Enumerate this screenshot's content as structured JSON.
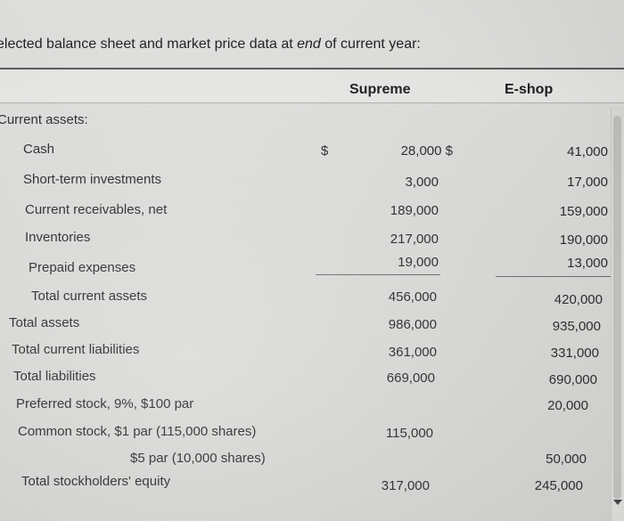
{
  "title": {
    "prefix": "elected balance sheet and market price data at ",
    "emphasis": "end",
    "suffix": " of current year:"
  },
  "columns": {
    "supreme": "Supreme",
    "eshop": "E-shop"
  },
  "currency_symbol": "$",
  "sections": {
    "current_assets": "Current assets:"
  },
  "rows": [
    {
      "label": "Cash",
      "supreme": "28,000",
      "eshop": "41,000"
    },
    {
      "label": "Short-term investments",
      "supreme": "3,000",
      "eshop": "17,000"
    },
    {
      "label": "Current receivables, net",
      "supreme": "189,000",
      "eshop": "159,000"
    },
    {
      "label": "Inventories",
      "supreme": "217,000",
      "eshop": "190,000"
    },
    {
      "label": "Prepaid expenses",
      "supreme": "19,000",
      "eshop": "13,000"
    },
    {
      "label": "Total current assets",
      "supreme": "456,000",
      "eshop": "420,000"
    },
    {
      "label": "Total assets",
      "supreme": "986,000",
      "eshop": "935,000"
    },
    {
      "label": "Total current liabilities",
      "supreme": "361,000",
      "eshop": "331,000"
    },
    {
      "label": "Total liabilities",
      "supreme": "669,000",
      "eshop": "690,000"
    },
    {
      "label": "Preferred stock, 9%, $100 par",
      "supreme": "",
      "eshop": "20,000"
    },
    {
      "label": "Common stock, $1 par (115,000 shares)",
      "supreme": "115,000",
      "eshop": ""
    },
    {
      "label": "$5 par (10,000 shares)",
      "supreme": "",
      "eshop": "50,000"
    },
    {
      "label": "Total stockholders' equity",
      "supreme": "317,000",
      "eshop": "245,000"
    }
  ],
  "colors": {
    "text": "#2b2b2b",
    "rule": "#5f5f5f",
    "background": "#dedfdc"
  },
  "icons": {
    "scroll_down": "triangle-down-icon"
  }
}
